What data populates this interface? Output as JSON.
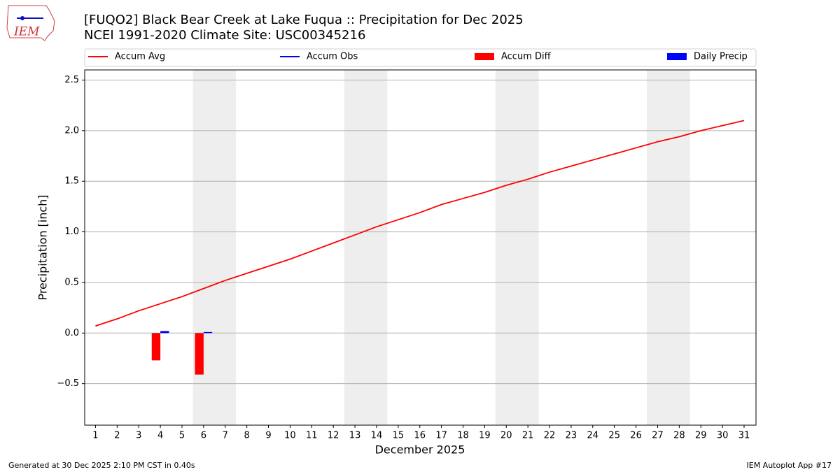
{
  "logo": {
    "text": "IEM"
  },
  "chart_data": {
    "type": "line",
    "title": "[FUQO2] Black Bear Creek at Lake Fuqua :: Precipitation for Dec 2025",
    "subtitle": "NCEI 1991-2020 Climate Site: USC00345216",
    "xlabel": "December 2025",
    "ylabel": "Precipitation [inch]",
    "xlim": [
      0.5,
      31.55
    ],
    "ylim": [
      -0.91,
      2.6
    ],
    "xticks": [
      1,
      2,
      3,
      4,
      5,
      6,
      7,
      8,
      9,
      10,
      11,
      12,
      13,
      14,
      15,
      16,
      17,
      18,
      19,
      20,
      21,
      22,
      23,
      24,
      25,
      26,
      27,
      28,
      29,
      30,
      31
    ],
    "yticks": [
      {
        "value": -0.5,
        "label": "−0.5"
      },
      {
        "value": 0,
        "label": "0.0"
      },
      0.5,
      {
        "value": 1,
        "label": "1.0"
      },
      1.5,
      {
        "value": 2,
        "label": "2.0"
      },
      2.5
    ],
    "grid": true,
    "shaded_spans": [
      [
        5.5,
        7.5
      ],
      [
        12.5,
        14.5
      ],
      [
        19.5,
        21.5
      ],
      [
        26.5,
        28.5
      ]
    ],
    "shade_color": "#eeeeee",
    "series": [
      {
        "name": "Accum Avg",
        "kind": "line",
        "color": "#ff0000",
        "x": [
          1,
          2,
          3,
          4,
          5,
          6,
          7,
          8,
          9,
          10,
          11,
          12,
          13,
          14,
          15,
          16,
          17,
          18,
          19,
          20,
          21,
          22,
          23,
          24,
          25,
          26,
          27,
          28,
          29,
          30,
          31
        ],
        "values": [
          0.07,
          0.14,
          0.22,
          0.29,
          0.36,
          0.44,
          0.52,
          0.59,
          0.66,
          0.73,
          0.81,
          0.89,
          0.97,
          1.05,
          1.12,
          1.19,
          1.27,
          1.33,
          1.39,
          1.46,
          1.52,
          1.59,
          1.65,
          1.71,
          1.77,
          1.83,
          1.89,
          1.94,
          2.0,
          2.05,
          2.1
        ]
      },
      {
        "name": "Accum Obs",
        "kind": "line",
        "color": "#0000ff",
        "x": [],
        "values": []
      },
      {
        "name": "Accum Diff",
        "kind": "bar",
        "color": "#ff0000",
        "offset": -0.2,
        "width": 0.4,
        "x": [
          4,
          6
        ],
        "values": [
          -0.27,
          -0.41
        ]
      },
      {
        "name": "Daily Precip",
        "kind": "bar",
        "color": "#0000ff",
        "offset": 0.2,
        "width": 0.4,
        "x": [
          4,
          6
        ],
        "values": [
          0.02,
          0.01
        ]
      }
    ]
  },
  "footer": {
    "left": "Generated at 30 Dec 2025 2:10 PM CST in 0.40s",
    "right": "IEM Autoplot App #17"
  }
}
